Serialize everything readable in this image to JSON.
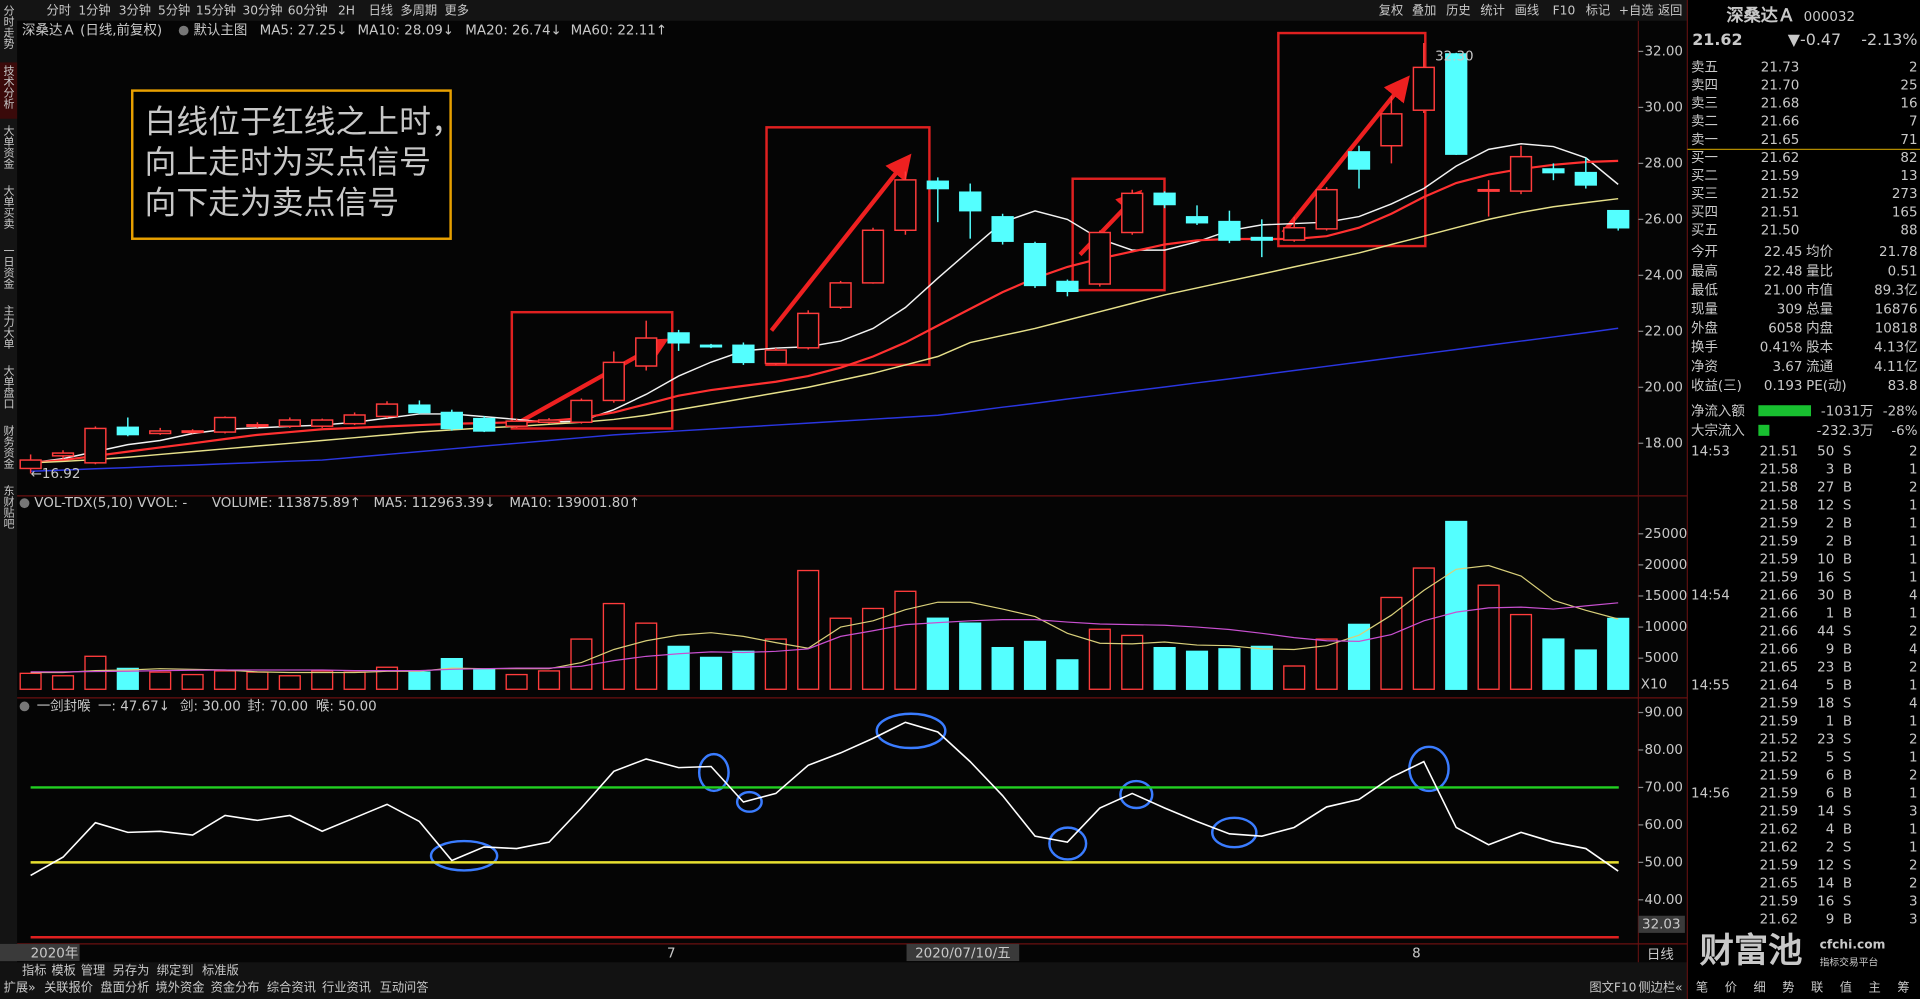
{
  "chart_data": [
    {
      "type": "candlestick",
      "title": "深桑达Ａ (日线,前复权)",
      "subtitle": "默认主图",
      "categories": [
        "2020年",
        null,
        null,
        null,
        null,
        null,
        null,
        null,
        null,
        null,
        null,
        null,
        null,
        null,
        null,
        null,
        null,
        null,
        null,
        null,
        "7",
        null,
        null,
        null,
        null,
        null,
        null,
        null,
        null,
        "2020/07/10/五",
        null,
        null,
        null,
        null,
        null,
        null,
        null,
        null,
        null,
        null,
        null,
        null,
        null,
        "8",
        null,
        null,
        null,
        null,
        null,
        null
      ],
      "open": [
        17.1,
        17.55,
        17.3,
        18.57,
        18.35,
        18.4,
        18.4,
        18.62,
        18.61,
        18.61,
        18.7,
        18.96,
        19.36,
        19.1,
        18.88,
        18.61,
        18.75,
        18.75,
        19.53,
        20.76,
        21.94,
        21.5,
        21.5,
        20.85,
        21.41,
        22.86,
        23.73,
        25.61,
        27.36,
        26.97,
        26.09,
        25.13,
        23.78,
        23.69,
        25.53,
        26.93,
        26.09,
        25.92,
        25.35,
        25.26,
        25.66,
        28.41,
        28.63,
        29.9,
        31.91,
        27.01,
        27.01,
        27.8,
        27.67,
        26.31
      ],
      "high": [
        17.6,
        17.75,
        18.6,
        18.92,
        18.55,
        18.5,
        18.96,
        18.75,
        18.92,
        18.88,
        19.1,
        19.5,
        19.53,
        19.2,
        18.96,
        18.88,
        18.9,
        19.6,
        21.28,
        22.38,
        22.05,
        21.55,
        21.6,
        21.4,
        22.75,
        23.8,
        25.7,
        27.71,
        27.5,
        27.28,
        26.2,
        25.2,
        23.85,
        25.6,
        27.06,
        27.0,
        26.5,
        26.31,
        26.0,
        26.09,
        27.15,
        28.63,
        30.4,
        32.3,
        31.95,
        27.4,
        28.63,
        28.0,
        28.2,
        26.31
      ],
      "low": [
        16.92,
        17.45,
        17.25,
        18.25,
        18.3,
        18.35,
        18.35,
        18.55,
        18.55,
        18.55,
        18.65,
        18.9,
        19.05,
        18.45,
        18.4,
        18.55,
        18.7,
        18.7,
        19.45,
        20.6,
        21.3,
        21.4,
        20.8,
        20.8,
        21.35,
        22.8,
        23.7,
        25.45,
        25.9,
        25.31,
        25.1,
        23.55,
        23.25,
        23.6,
        25.45,
        26.4,
        25.8,
        25.15,
        24.65,
        25.2,
        25.6,
        27.1,
        28.0,
        29.8,
        28.3,
        26.1,
        26.9,
        27.4,
        27.1,
        25.6
      ],
      "close": [
        17.4,
        17.65,
        18.53,
        18.31,
        18.44,
        18.44,
        18.92,
        18.66,
        18.83,
        18.83,
        19.01,
        19.4,
        19.1,
        18.53,
        18.44,
        18.79,
        18.83,
        19.53,
        20.89,
        21.76,
        21.59,
        21.46,
        20.89,
        21.33,
        22.64,
        23.73,
        25.61,
        27.41,
        27.1,
        26.31,
        25.22,
        23.64,
        23.43,
        25.53,
        26.93,
        26.53,
        25.88,
        25.26,
        25.26,
        25.7,
        27.06,
        27.8,
        29.77,
        31.43,
        28.33,
        27.06,
        28.24,
        27.67,
        27.23,
        25.7
      ],
      "up_color": "#ff3c3c",
      "down_color": "#54ffff",
      "series": [
        {
          "name": "MA5: 27.25↓",
          "color": "#f2f2f2",
          "values": [
            17.3,
            17.45,
            17.7,
            17.95,
            18.1,
            18.35,
            18.5,
            18.55,
            18.6,
            18.65,
            18.75,
            18.9,
            19.05,
            19.05,
            18.95,
            18.85,
            18.75,
            18.8,
            19.2,
            19.75,
            20.4,
            20.9,
            21.3,
            21.4,
            21.45,
            21.65,
            22.1,
            22.85,
            23.9,
            24.9,
            25.9,
            26.3,
            26.0,
            25.3,
            24.9,
            24.9,
            25.2,
            25.6,
            25.8,
            25.85,
            25.9,
            26.1,
            26.55,
            27.1,
            27.9,
            28.5,
            28.7,
            28.6,
            28.2,
            27.25
          ]
        },
        {
          "name": "MA10: 28.09↓",
          "color": "#ff3030",
          "values": [
            17.3,
            17.4,
            17.55,
            17.7,
            17.85,
            18.0,
            18.15,
            18.3,
            18.4,
            18.5,
            18.55,
            18.6,
            18.65,
            18.7,
            18.72,
            18.75,
            18.8,
            18.9,
            19.1,
            19.4,
            19.7,
            19.9,
            20.05,
            20.2,
            20.4,
            20.7,
            21.1,
            21.6,
            22.2,
            22.8,
            23.4,
            23.9,
            24.3,
            24.6,
            24.85,
            25.1,
            25.25,
            25.3,
            25.3,
            25.3,
            25.4,
            25.7,
            26.2,
            26.8,
            27.3,
            27.6,
            27.8,
            27.95,
            28.05,
            28.09
          ]
        },
        {
          "name": "MA20: 26.74↓",
          "color": "#e6e08a",
          "values": [
            17.3,
            17.35,
            17.42,
            17.5,
            17.6,
            17.7,
            17.8,
            17.9,
            18.0,
            18.1,
            18.2,
            18.3,
            18.4,
            18.48,
            18.55,
            18.6,
            18.68,
            18.75,
            18.85,
            19.0,
            19.2,
            19.4,
            19.6,
            19.8,
            20.0,
            20.25,
            20.5,
            20.8,
            21.1,
            21.6,
            21.85,
            22.1,
            22.4,
            22.7,
            23.0,
            23.3,
            23.55,
            23.8,
            24.05,
            24.3,
            24.55,
            24.8,
            25.1,
            25.4,
            25.7,
            26.0,
            26.25,
            26.45,
            26.6,
            26.74
          ]
        },
        {
          "name": "MA60: 22.11↑",
          "color": "#2a36e0",
          "values": [
            17.0,
            17.04,
            17.09,
            17.13,
            17.18,
            17.22,
            17.27,
            17.31,
            17.36,
            17.4,
            17.5,
            17.6,
            17.7,
            17.8,
            17.9,
            18.0,
            18.1,
            18.2,
            18.3,
            18.37,
            18.44,
            18.51,
            18.58,
            18.65,
            18.72,
            18.79,
            18.86,
            18.93,
            19.0,
            19.14,
            19.29,
            19.43,
            19.58,
            19.72,
            19.87,
            20.01,
            20.16,
            20.3,
            20.45,
            20.6,
            20.75,
            20.9,
            21.05,
            21.2,
            21.35,
            21.5,
            21.65,
            21.8,
            21.95,
            22.11
          ]
        }
      ],
      "annotations": [
        "32.30",
        "←16.92"
      ],
      "ylim": [
        16.1,
        33.05
      ],
      "yticks": [
        {
          "value": 18,
          "label": "18.00"
        },
        {
          "value": 20,
          "label": "20.00"
        },
        {
          "value": 22,
          "label": "22.00"
        },
        {
          "value": 24,
          "label": "24.00"
        },
        {
          "value": 26,
          "label": "26.00"
        },
        {
          "value": 28,
          "label": "28.00"
        },
        {
          "value": 30,
          "label": "30.00"
        },
        {
          "value": 32,
          "label": "32.00"
        }
      ],
      "note": [
        "白线位于红线之上时，",
        "向上走时为买点信号",
        "向下走为卖点信号"
      ]
    },
    {
      "type": "bar",
      "title": "VOL-TDX(5,10) VVOL: -",
      "unit_label": "X10",
      "series": [
        {
          "name": "VOLUME: 113875.89↑",
          "color": "#e8c848",
          "values": [
            2560,
            2170,
            5300,
            3350,
            2760,
            2360,
            2950,
            2760,
            2170,
            2950,
            2760,
            3540,
            2760,
            4920,
            3150,
            2360,
            2950,
            8070,
            13780,
            10630,
            6890,
            5120,
            6100,
            8070,
            19090,
            11420,
            12990,
            15750,
            11420,
            10630,
            6690,
            7680,
            4720,
            9650,
            8660,
            6690,
            6100,
            6500,
            6890,
            3740,
            8070,
            10430,
            14760,
            19490,
            26970,
            16730,
            12010,
            8070,
            6300,
            11388
          ]
        },
        {
          "name": "MA5: 112963.39↓",
          "color": "#d8cf7a",
          "values": [
            2700,
            2700,
            3000,
            3100,
            3300,
            3200,
            3100,
            2800,
            2700,
            2700,
            2700,
            2900,
            2900,
            3400,
            3300,
            3300,
            3300,
            4300,
            6400,
            7800,
            8700,
            9100,
            8500,
            7500,
            6600,
            10000,
            11000,
            12800,
            14000,
            14000,
            12900,
            11700,
            9000,
            7400,
            7300,
            7600,
            7100,
            7000,
            6500,
            6400,
            7000,
            8700,
            11900,
            15900,
            19300,
            19900,
            18200,
            14300,
            12700,
            11296
          ]
        },
        {
          "name": "MA10: 139001.80↑",
          "color": "#c850d0",
          "values": [
            2800,
            2800,
            2850,
            2900,
            3000,
            3050,
            3100,
            3100,
            3100,
            3100,
            3000,
            3000,
            3000,
            3200,
            3300,
            3400,
            3400,
            3700,
            4600,
            5300,
            5700,
            6000,
            5900,
            6100,
            6500,
            8500,
            9400,
            10400,
            10700,
            11000,
            11200,
            11200,
            10800,
            10500,
            10400,
            10300,
            10000,
            9600,
            9000,
            8300,
            7800,
            7700,
            8800,
            11000,
            12400,
            13100,
            13200,
            12900,
            13400,
            13900
          ]
        }
      ],
      "ylim": [
        0,
        30000
      ],
      "yticks": [
        5000,
        10000,
        15000,
        20000,
        25000
      ]
    },
    {
      "type": "line",
      "title": "一剑封喉",
      "series": [
        {
          "name": "一: 47.67↓",
          "color": "#ffffff",
          "values": [
            46.5,
            51.4,
            60.6,
            58.0,
            58.3,
            57.3,
            62.5,
            61.2,
            62.5,
            58.3,
            61.9,
            65.5,
            60.9,
            50.5,
            54.1,
            53.7,
            55.4,
            64.5,
            74.3,
            77.6,
            75.3,
            75.6,
            66.1,
            68.4,
            75.9,
            79.2,
            83.1,
            87.4,
            84.8,
            76.9,
            67.8,
            57.0,
            55.4,
            64.5,
            68.4,
            64.5,
            60.9,
            57.6,
            57.0,
            59.3,
            64.8,
            66.8,
            72.7,
            76.9,
            59.3,
            54.7,
            58.0,
            55.4,
            53.7,
            47.67
          ]
        }
      ],
      "levels": [
        {
          "name": "剑: 30.00",
          "value": 30,
          "color": "#e02020"
        },
        {
          "name": "封: 70.00",
          "value": 70,
          "color": "#22d022"
        },
        {
          "name": "喉: 50.00",
          "value": 50,
          "color": "#e8e030"
        }
      ],
      "annotations": [
        "32.03"
      ],
      "ylim": [
        28,
        93.3
      ],
      "yticks": [
        {
          "value": 40,
          "label": "40.00"
        },
        {
          "value": 50,
          "label": "50.00"
        },
        {
          "value": 60,
          "label": "60.00"
        },
        {
          "value": 70,
          "label": "70.00"
        },
        {
          "value": 80,
          "label": "80.00"
        },
        {
          "value": 90,
          "label": "90.00"
        }
      ]
    }
  ],
  "toolbar": {
    "periods": [
      "分时",
      "1分钟",
      "3分钟",
      "5分钟",
      "15分钟",
      "30分钟",
      "60分钟",
      "2H",
      "日线",
      "多周期",
      "更多"
    ],
    "tools": [
      "复权",
      "叠加",
      "历史",
      "统计",
      "画线",
      "F10",
      "标记",
      "+自选",
      "返回"
    ]
  },
  "sidebar": [
    "分时走势",
    "技术分析",
    "大单资金",
    "大单买卖",
    "一日资金",
    "主力大单",
    "大单盘口",
    "财务资金",
    "东财贴吧"
  ],
  "quote": {
    "name": "深桑达Ａ",
    "code": "000032",
    "price": "21.62",
    "change": "▼-0.47",
    "pct": "-2.13%"
  },
  "order_book": [
    [
      "卖五",
      "21.73",
      "2"
    ],
    [
      "卖四",
      "21.70",
      "25"
    ],
    [
      "卖三",
      "21.68",
      "16"
    ],
    [
      "卖二",
      "21.66",
      "7"
    ],
    [
      "卖一",
      "21.65",
      "71"
    ],
    [
      "买一",
      "21.62",
      "82"
    ],
    [
      "买二",
      "21.59",
      "13"
    ],
    [
      "买三",
      "21.52",
      "273"
    ],
    [
      "买四",
      "21.51",
      "165"
    ],
    [
      "买五",
      "21.50",
      "88"
    ]
  ],
  "stats": [
    [
      "今开",
      "22.45",
      "均价",
      "21.78"
    ],
    [
      "最高",
      "22.48",
      "量比",
      "0.51"
    ],
    [
      "最低",
      "21.00",
      "市值",
      "89.3亿"
    ],
    [
      "现量",
      "309",
      "总量",
      "16876"
    ],
    [
      "外盘",
      "6058",
      "内盘",
      "10818"
    ],
    [
      "换手",
      "0.41%",
      "股本",
      "4.13亿"
    ],
    [
      "净资",
      "3.67",
      "流通",
      "4.11亿"
    ],
    [
      "收益(三)",
      "0.193",
      "PE(动)",
      "83.8"
    ]
  ],
  "flows": [
    [
      "净流入额",
      "-1031万",
      "-28%"
    ],
    [
      "大宗流入",
      "-232.3万",
      "-6%"
    ]
  ],
  "trades": [
    {
      "time": "14:53",
      "rows": [
        [
          "21.51",
          "50",
          "S",
          "2"
        ],
        [
          "21.58",
          "3",
          "B",
          "1"
        ],
        [
          "21.58",
          "27",
          "B",
          "2"
        ],
        [
          "21.58",
          "12",
          "S",
          "1"
        ],
        [
          "21.59",
          "2",
          "B",
          "1"
        ],
        [
          "21.59",
          "2",
          "B",
          "1"
        ],
        [
          "21.59",
          "10",
          "B",
          "1"
        ],
        [
          "21.59",
          "16",
          "S",
          "1"
        ]
      ]
    },
    {
      "time": "14:54",
      "rows": [
        [
          "21.66",
          "30",
          "B",
          "4"
        ],
        [
          "21.66",
          "1",
          "B",
          "1"
        ],
        [
          "21.66",
          "44",
          "S",
          "2"
        ],
        [
          "21.66",
          "9",
          "B",
          "4"
        ],
        [
          "21.65",
          "23",
          "B",
          "2"
        ]
      ]
    },
    {
      "time": "14:55",
      "rows": [
        [
          "21.64",
          "5",
          "B",
          "1"
        ],
        [
          "21.59",
          "18",
          "S",
          "4"
        ],
        [
          "21.59",
          "1",
          "B",
          "1"
        ],
        [
          "21.52",
          "23",
          "S",
          "2"
        ],
        [
          "21.52",
          "5",
          "S",
          "1"
        ],
        [
          "21.59",
          "6",
          "B",
          "2"
        ]
      ]
    },
    {
      "time": "14:56",
      "rows": [
        [
          "21.59",
          "6",
          "B",
          "1"
        ],
        [
          "21.59",
          "14",
          "S",
          "3"
        ],
        [
          "21.62",
          "4",
          "B",
          "1"
        ],
        [
          "21.62",
          "2",
          "S",
          "1"
        ],
        [
          "21.59",
          "12",
          "S",
          "2"
        ],
        [
          "21.65",
          "14",
          "B",
          "2"
        ],
        [
          "21.59",
          "16",
          "S",
          "3"
        ],
        [
          "21.62",
          "9",
          "B",
          "3"
        ]
      ]
    }
  ],
  "period_label": "日线",
  "watermark": {
    "brand": "财富池",
    "site": "cfchi.com",
    "slogan": "指标交易平台"
  },
  "chart_tools": [
    "指标",
    "模板",
    "管理",
    "另存为",
    "绑定到",
    "标准版"
  ],
  "footer_tabs": [
    "扩展»",
    "关联报价",
    "盘面分析",
    "境外资金",
    "资金分布",
    "综合资讯",
    "行业资讯",
    "互动问答"
  ],
  "footer_right": [
    "图文F10",
    "侧边栏«"
  ],
  "quote_tabs": [
    "笔",
    "价",
    "细",
    "势",
    "联",
    "值",
    "主",
    "筹"
  ]
}
